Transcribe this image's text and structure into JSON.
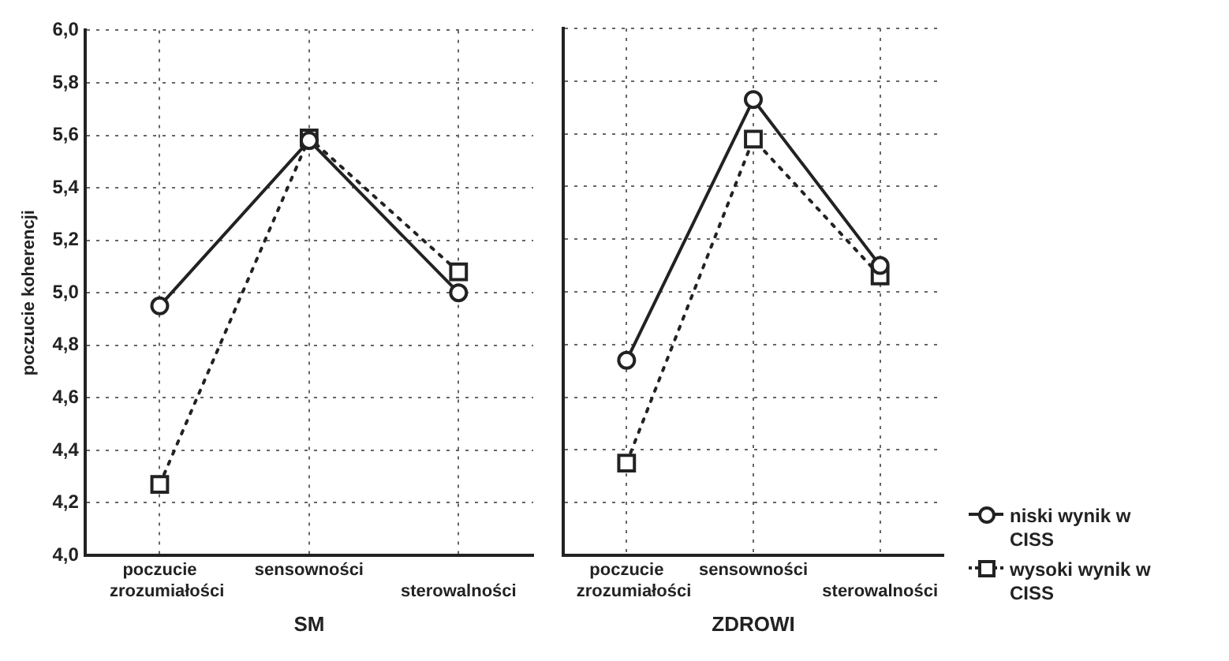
{
  "chart_data": [
    {
      "type": "line",
      "ylabel": "poczucie koherencji",
      "xlabel": "SM",
      "categories": [
        "poczucie zrozumiałości",
        "sensowności",
        "sterowalności"
      ],
      "series": [
        {
          "color": "#222222",
          "values": [
            4.95,
            5.58,
            5.0
          ],
          "marker": "circle",
          "line_style": "solid"
        },
        {
          "color": "#222222",
          "values": [
            4.27,
            5.59,
            5.08
          ],
          "marker": "square",
          "line_style": "dotted"
        }
      ],
      "ylim": [
        4.0,
        6.0
      ],
      "yticks": [
        {
          "value": 4.0,
          "label": "4,0"
        },
        {
          "value": 4.2,
          "label": "4,2"
        },
        {
          "value": 4.4,
          "label": "4,4"
        },
        {
          "value": 4.6,
          "label": "4,6"
        },
        {
          "value": 4.8,
          "label": "4,8"
        },
        {
          "value": 5.0,
          "label": "5,0"
        },
        {
          "value": 5.2,
          "label": "5,2"
        },
        {
          "value": 5.4,
          "label": "5,4"
        },
        {
          "value": 5.6,
          "label": "5,6"
        },
        {
          "value": 5.8,
          "label": "5,8"
        },
        {
          "value": 6.0,
          "label": "6,0"
        }
      ],
      "grid": true,
      "legend": false
    },
    {
      "type": "line",
      "xlabel": "ZDROWI",
      "categories": [
        "poczucie zrozumiałości",
        "sensowności",
        "sterowalności"
      ],
      "series": [
        {
          "name": "niski wynik w CISS",
          "color": "#222222",
          "values": [
            4.74,
            5.73,
            5.1
          ],
          "marker": "circle",
          "line_style": "solid"
        },
        {
          "name": "wysoki wynik w CISS",
          "color": "#222222",
          "values": [
            4.35,
            5.58,
            5.06
          ],
          "marker": "square",
          "line_style": "dotted"
        }
      ],
      "ylim": [
        4.0,
        6.0
      ],
      "yticks": [
        4.0,
        4.2,
        4.4,
        4.6,
        4.8,
        5.0,
        5.2,
        5.4,
        5.6,
        5.8,
        6.0
      ],
      "grid": true,
      "legend": "bottom right",
      "tick_labels": "x"
    }
  ]
}
